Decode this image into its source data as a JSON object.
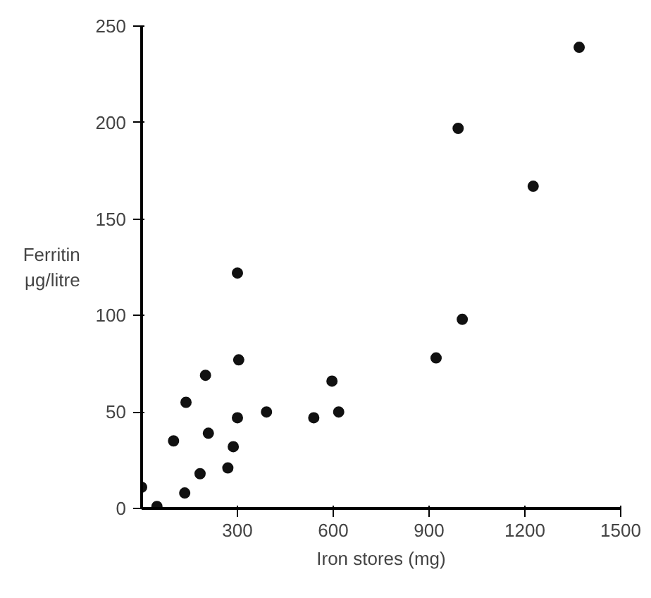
{
  "chart_data": {
    "type": "scatter",
    "xlabel": "Iron stores (mg)",
    "ylabel": "Ferritin\nμg/litre",
    "x": [
      200,
      139,
      100,
      209,
      300,
      391,
      539,
      287,
      183,
      270,
      135,
      0,
      48,
      596,
      617,
      922,
      1004,
      991,
      1226,
      1370,
      300,
      304
    ],
    "values": [
      69,
      55,
      35,
      39,
      47,
      50,
      47,
      32,
      18,
      21,
      8,
      11,
      1,
      66,
      50,
      78,
      98,
      197,
      167,
      239,
      122,
      77
    ],
    "color": "#111111",
    "marker": "circle",
    "xlim": [
      0,
      1500
    ],
    "ylim": [
      0,
      250
    ],
    "xticks": [
      300,
      600,
      900,
      1200,
      1500
    ],
    "yticks": [
      0,
      50,
      100,
      150,
      200,
      250
    ],
    "grid": false
  }
}
